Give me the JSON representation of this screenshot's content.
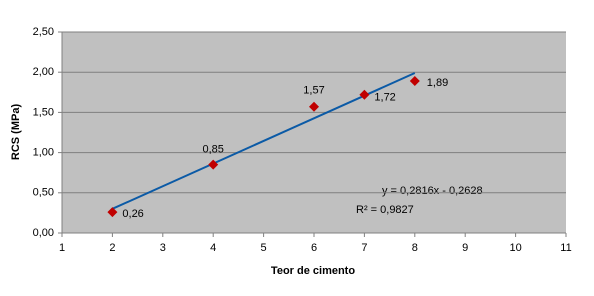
{
  "chart_data": {
    "type": "scatter",
    "x_label": "Teor de cimento",
    "y_label": "RCS (MPa)",
    "series": [
      {
        "color": "#c00000",
        "x": [
          2,
          4,
          6,
          7,
          8
        ],
        "values": [
          0.26,
          0.85,
          1.57,
          1.72,
          1.89
        ],
        "value_labels": [
          "0,26",
          "0,85",
          "1,57",
          "1,72",
          "1,89"
        ]
      }
    ],
    "trendline": {
      "type": "linear",
      "color": "#0b5aa6",
      "slope": 0.2816,
      "intercept": -0.2628,
      "equation": "y = 0,2816x - 0,2628",
      "r_squared": "R² = 0,9827"
    },
    "xlim": [
      1,
      11
    ],
    "xticks": [
      1,
      2,
      3,
      4,
      5,
      6,
      7,
      8,
      9,
      10,
      11
    ],
    "ylim": [
      0,
      2.5
    ],
    "yticks": [
      {
        "value": 0,
        "label": "0,00"
      },
      {
        "value": 0.5,
        "label": "0,50"
      },
      {
        "value": 1,
        "label": "1,00"
      },
      {
        "value": 1.5,
        "label": "1,50"
      },
      {
        "value": 2,
        "label": "2,00"
      },
      {
        "value": 2.5,
        "label": "2,50"
      }
    ],
    "grid": true
  }
}
